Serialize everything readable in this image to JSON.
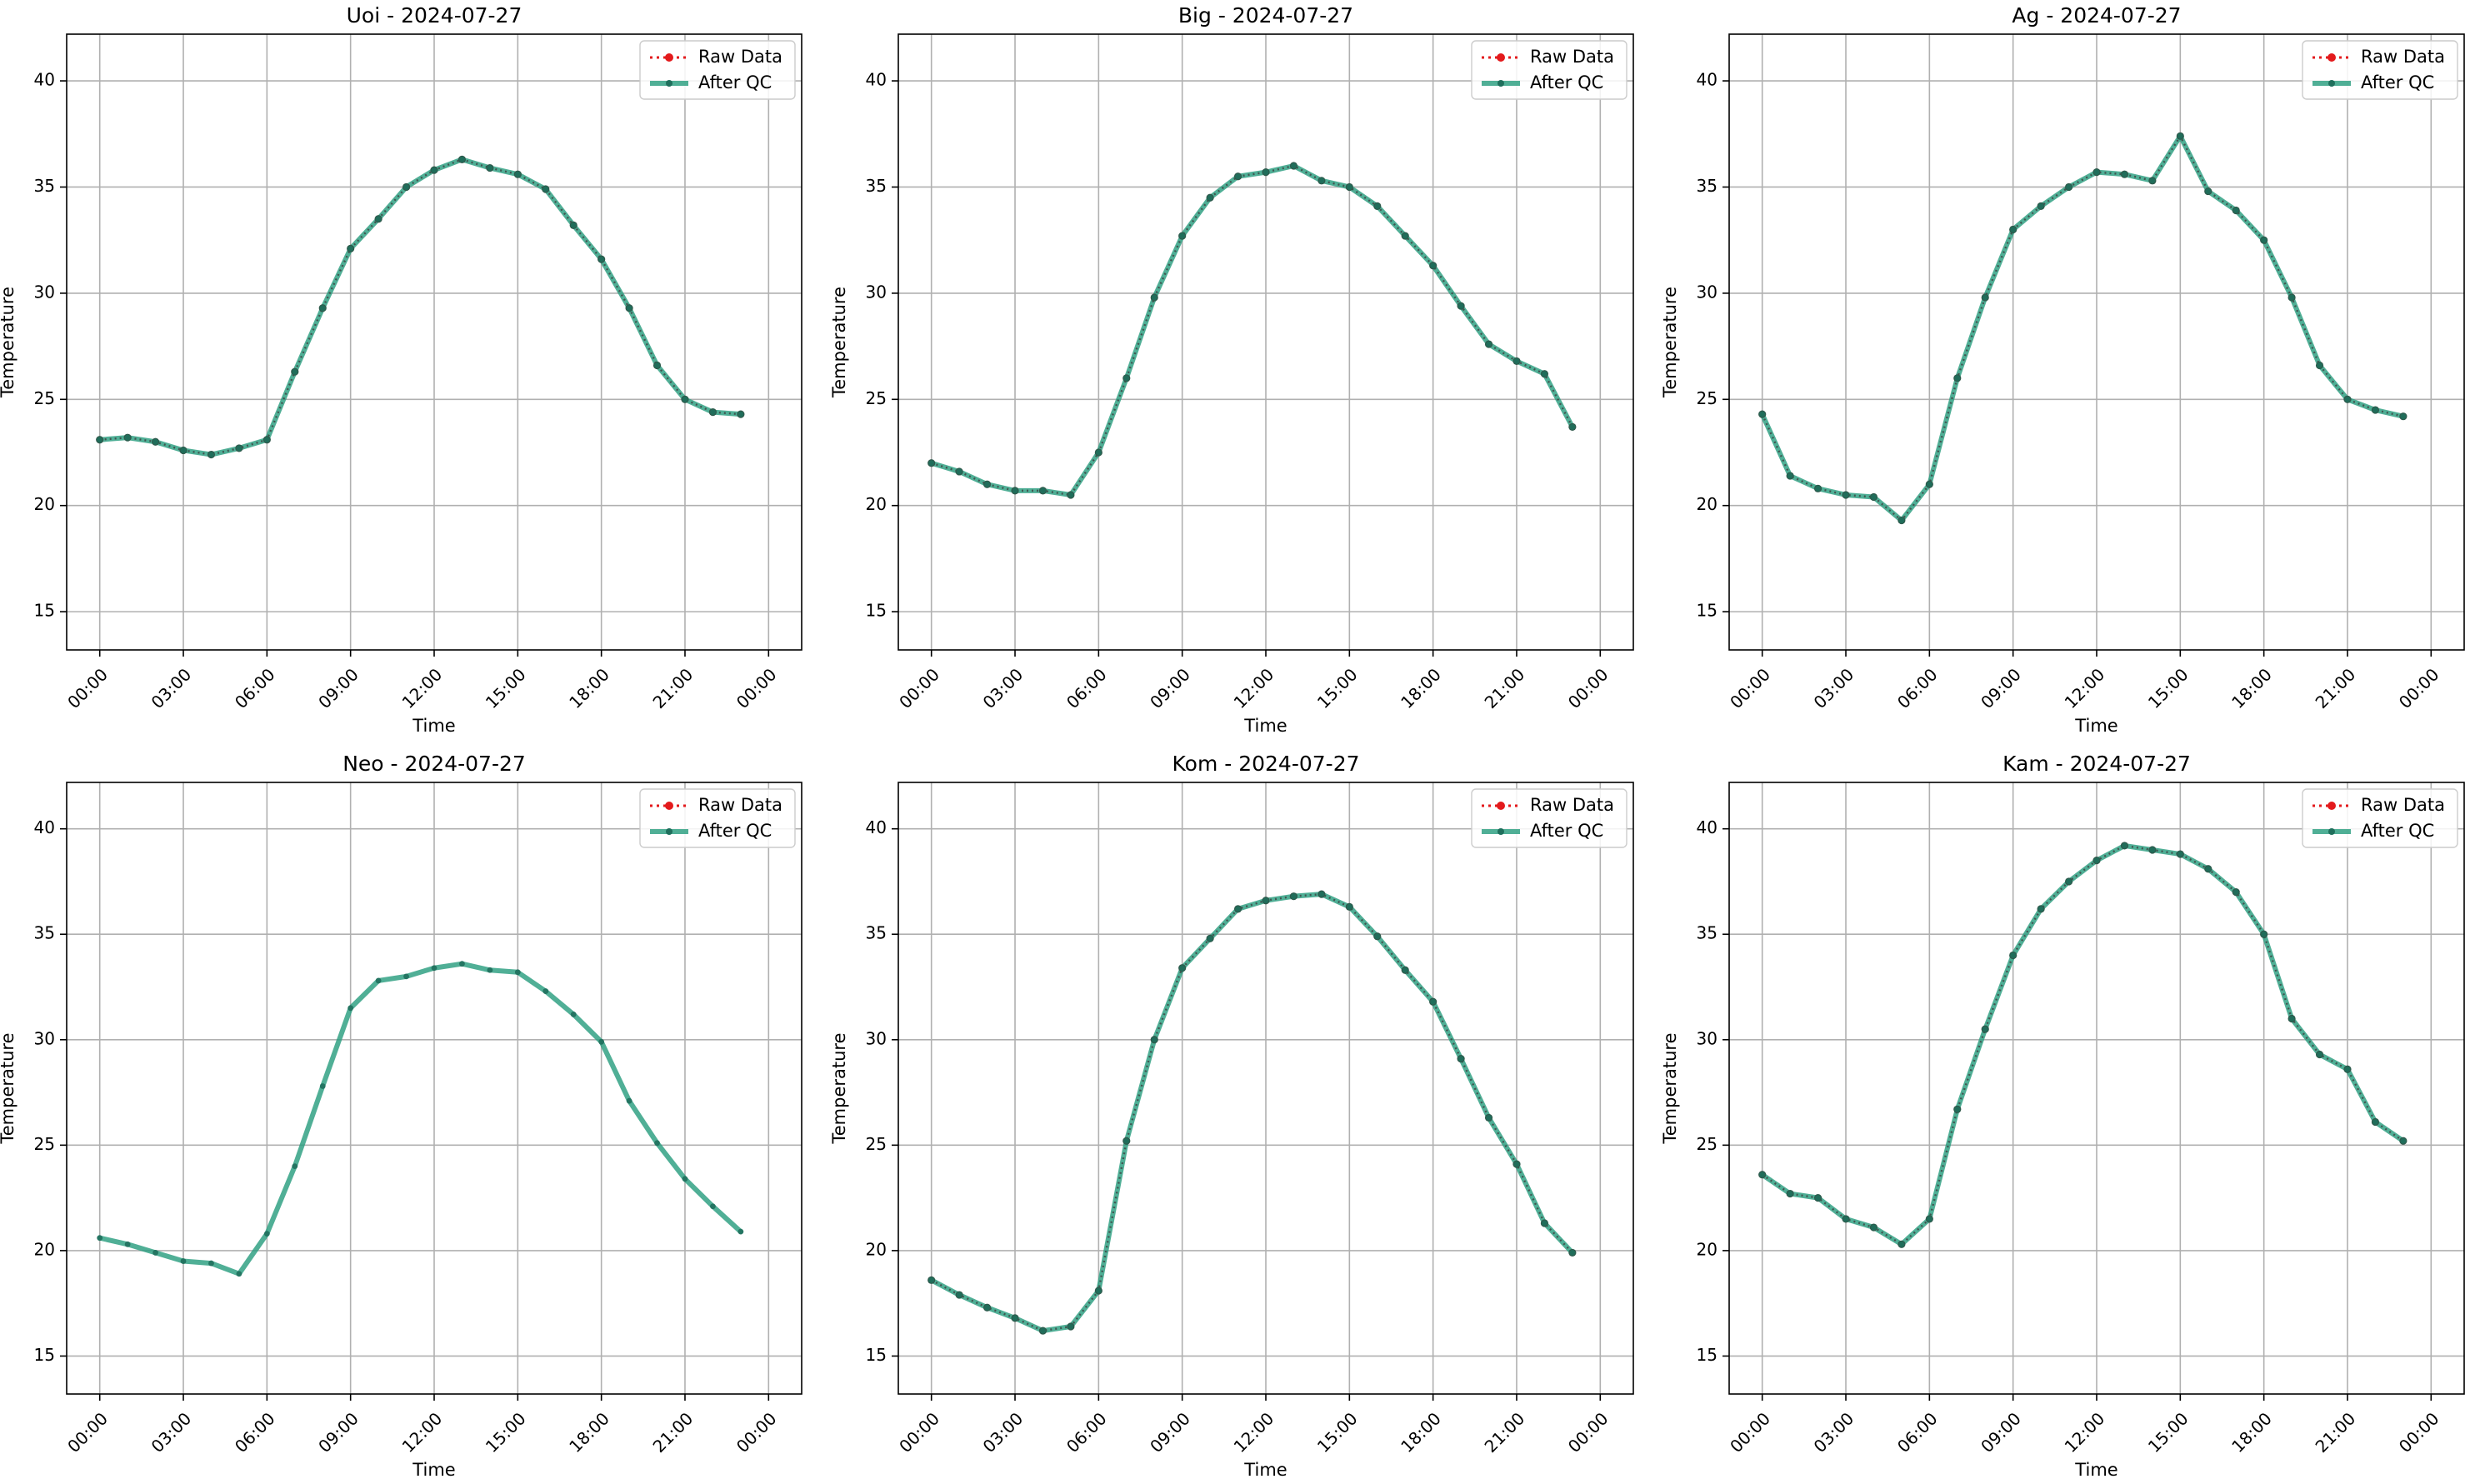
{
  "colors": {
    "raw": "#e31a1c",
    "qc": "#2a9d7f",
    "qc_marker": "#1f6f5c",
    "grid": "#b0b0b0",
    "axis": "#000000"
  },
  "legend": {
    "raw_label": "Raw Data",
    "qc_label": "After QC",
    "placement": "upper-right"
  },
  "chart_data": [
    {
      "type": "line",
      "title": "Uoi - 2024-07-27",
      "xlabel": "Time",
      "ylabel": "Temperature",
      "x_ticks": [
        "00:00",
        "03:00",
        "06:00",
        "09:00",
        "12:00",
        "15:00",
        "18:00",
        "21:00",
        "00:00"
      ],
      "y_ticks": [
        "15",
        "20",
        "25",
        "30",
        "35",
        "40"
      ],
      "ylim": [
        13.2,
        42.2
      ],
      "grid": true,
      "x_hours": [
        0,
        1,
        2,
        3,
        4,
        5,
        6,
        7,
        8,
        9,
        10,
        11,
        12,
        13,
        14,
        15,
        16,
        17,
        18,
        19,
        20,
        21,
        22,
        23
      ],
      "series": [
        {
          "name": "Raw Data",
          "values": [
            23.1,
            23.2,
            23.0,
            22.6,
            22.4,
            22.7,
            23.1,
            26.3,
            29.3,
            32.1,
            33.5,
            35.0,
            35.8,
            36.3,
            35.9,
            35.6,
            34.9,
            33.2,
            31.6,
            29.3,
            26.6,
            25.0,
            24.4,
            24.3
          ]
        },
        {
          "name": "After QC",
          "values": [
            23.1,
            23.2,
            23.0,
            22.6,
            22.4,
            22.7,
            23.1,
            26.3,
            29.3,
            32.1,
            33.5,
            35.0,
            35.8,
            36.3,
            35.9,
            35.6,
            34.9,
            33.2,
            31.6,
            29.3,
            26.6,
            25.0,
            24.4,
            24.3
          ]
        }
      ]
    },
    {
      "type": "line",
      "title": "Big - 2024-07-27",
      "xlabel": "Time",
      "ylabel": "Temperature",
      "x_ticks": [
        "00:00",
        "03:00",
        "06:00",
        "09:00",
        "12:00",
        "15:00",
        "18:00",
        "21:00",
        "00:00"
      ],
      "y_ticks": [
        "15",
        "20",
        "25",
        "30",
        "35",
        "40"
      ],
      "ylim": [
        13.2,
        42.2
      ],
      "grid": true,
      "x_hours": [
        0,
        1,
        2,
        3,
        4,
        5,
        6,
        7,
        8,
        9,
        10,
        11,
        12,
        13,
        14,
        15,
        16,
        17,
        18,
        19,
        20,
        21,
        22,
        23
      ],
      "series": [
        {
          "name": "Raw Data",
          "values": [
            22.0,
            21.6,
            21.0,
            20.7,
            20.7,
            20.5,
            22.5,
            26.0,
            29.8,
            32.7,
            34.5,
            35.5,
            35.7,
            36.0,
            35.3,
            35.0,
            34.1,
            32.7,
            31.3,
            29.4,
            27.6,
            26.8,
            26.2,
            23.7
          ]
        },
        {
          "name": "After QC",
          "values": [
            22.0,
            21.6,
            21.0,
            20.7,
            20.7,
            20.5,
            22.5,
            26.0,
            29.8,
            32.7,
            34.5,
            35.5,
            35.7,
            36.0,
            35.3,
            35.0,
            34.1,
            32.7,
            31.3,
            29.4,
            27.6,
            26.8,
            26.2,
            23.7
          ]
        }
      ]
    },
    {
      "type": "line",
      "title": "Ag - 2024-07-27",
      "xlabel": "Time",
      "ylabel": "Temperature",
      "x_ticks": [
        "00:00",
        "03:00",
        "06:00",
        "09:00",
        "12:00",
        "15:00",
        "18:00",
        "21:00",
        "00:00"
      ],
      "y_ticks": [
        "15",
        "20",
        "25",
        "30",
        "35",
        "40"
      ],
      "ylim": [
        13.2,
        42.2
      ],
      "grid": true,
      "x_hours": [
        0,
        1,
        2,
        3,
        4,
        5,
        6,
        7,
        8,
        9,
        10,
        11,
        12,
        13,
        14,
        15,
        16,
        17,
        18,
        19,
        20,
        21,
        22,
        23
      ],
      "series": [
        {
          "name": "Raw Data",
          "values": [
            24.3,
            21.4,
            20.8,
            20.5,
            20.4,
            19.3,
            21.0,
            26.0,
            29.8,
            33.0,
            34.1,
            35.0,
            35.7,
            35.6,
            35.3,
            37.4,
            34.8,
            33.9,
            32.5,
            29.8,
            26.6,
            25.0,
            24.5,
            24.2
          ]
        },
        {
          "name": "After QC",
          "values": [
            24.3,
            21.4,
            20.8,
            20.5,
            20.4,
            19.3,
            21.0,
            26.0,
            29.8,
            33.0,
            34.1,
            35.0,
            35.7,
            35.6,
            35.3,
            37.4,
            34.8,
            33.9,
            32.5,
            29.8,
            26.6,
            25.0,
            24.5,
            24.2
          ]
        }
      ]
    },
    {
      "type": "line",
      "title": "Neo - 2024-07-27",
      "xlabel": "Time",
      "ylabel": "Temperature",
      "x_ticks": [
        "00:00",
        "03:00",
        "06:00",
        "09:00",
        "12:00",
        "15:00",
        "18:00",
        "21:00",
        "00:00"
      ],
      "y_ticks": [
        "15",
        "20",
        "25",
        "30",
        "35",
        "40"
      ],
      "ylim": [
        13.2,
        42.2
      ],
      "grid": true,
      "x_hours": [
        0,
        1,
        2,
        3,
        4,
        5,
        6,
        7,
        8,
        9,
        10,
        11,
        12,
        13,
        14,
        15,
        16,
        17,
        18,
        19,
        20,
        21,
        22,
        23
      ],
      "series": [
        {
          "name": "Raw Data",
          "values": []
        },
        {
          "name": "After QC",
          "values": [
            20.6,
            20.3,
            19.9,
            19.5,
            19.4,
            18.9,
            20.8,
            24.0,
            27.8,
            31.5,
            32.8,
            33.0,
            33.4,
            33.6,
            33.3,
            33.2,
            32.3,
            31.2,
            29.9,
            27.1,
            25.1,
            23.4,
            22.1,
            20.9
          ]
        }
      ]
    },
    {
      "type": "line",
      "title": "Kom - 2024-07-27",
      "xlabel": "Time",
      "ylabel": "Temperature",
      "x_ticks": [
        "00:00",
        "03:00",
        "06:00",
        "09:00",
        "12:00",
        "15:00",
        "18:00",
        "21:00",
        "00:00"
      ],
      "y_ticks": [
        "15",
        "20",
        "25",
        "30",
        "35",
        "40"
      ],
      "ylim": [
        13.2,
        42.2
      ],
      "grid": true,
      "x_hours": [
        0,
        1,
        2,
        3,
        4,
        5,
        6,
        7,
        8,
        9,
        10,
        11,
        12,
        13,
        14,
        15,
        16,
        17,
        18,
        19,
        20,
        21,
        22,
        23
      ],
      "series": [
        {
          "name": "Raw Data",
          "values": [
            18.6,
            17.9,
            17.3,
            16.8,
            16.2,
            16.4,
            18.1,
            25.2,
            30.0,
            33.4,
            34.8,
            36.2,
            36.6,
            36.8,
            36.9,
            36.3,
            34.9,
            33.3,
            31.8,
            29.1,
            26.3,
            24.1,
            21.3,
            19.9
          ]
        },
        {
          "name": "After QC",
          "values": [
            18.6,
            17.9,
            17.3,
            16.8,
            16.2,
            16.4,
            18.1,
            25.2,
            30.0,
            33.4,
            34.8,
            36.2,
            36.6,
            36.8,
            36.9,
            36.3,
            34.9,
            33.3,
            31.8,
            29.1,
            26.3,
            24.1,
            21.3,
            19.9
          ]
        }
      ]
    },
    {
      "type": "line",
      "title": "Kam - 2024-07-27",
      "xlabel": "Time",
      "ylabel": "Temperature",
      "x_ticks": [
        "00:00",
        "03:00",
        "06:00",
        "09:00",
        "12:00",
        "15:00",
        "18:00",
        "21:00",
        "00:00"
      ],
      "y_ticks": [
        "15",
        "20",
        "25",
        "30",
        "35",
        "40"
      ],
      "ylim": [
        13.2,
        42.2
      ],
      "grid": true,
      "x_hours": [
        0,
        1,
        2,
        3,
        4,
        5,
        6,
        7,
        8,
        9,
        10,
        11,
        12,
        13,
        14,
        15,
        16,
        17,
        18,
        19,
        20,
        21,
        22,
        23
      ],
      "series": [
        {
          "name": "Raw Data",
          "values": [
            23.6,
            22.7,
            22.5,
            21.5,
            21.1,
            20.3,
            21.5,
            26.7,
            30.5,
            34.0,
            36.2,
            37.5,
            38.5,
            39.2,
            39.0,
            38.8,
            38.1,
            37.0,
            35.0,
            31.0,
            29.3,
            28.6,
            26.1,
            25.2
          ]
        },
        {
          "name": "After QC",
          "values": [
            23.6,
            22.7,
            22.5,
            21.5,
            21.1,
            20.3,
            21.5,
            26.7,
            30.5,
            34.0,
            36.2,
            37.5,
            38.5,
            39.2,
            39.0,
            38.8,
            38.1,
            37.0,
            35.0,
            31.0,
            29.3,
            28.6,
            26.1,
            25.2
          ]
        }
      ]
    }
  ]
}
